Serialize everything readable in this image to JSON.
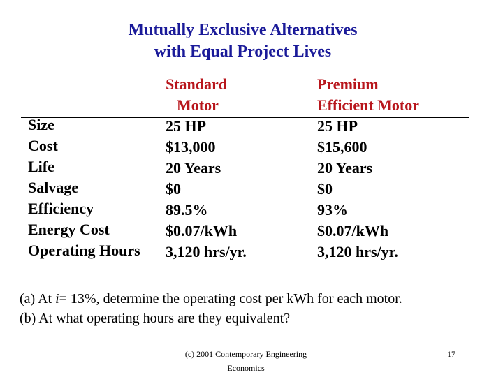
{
  "title": {
    "line1": "Mutually Exclusive Alternatives",
    "line2": "with Equal Project Lives"
  },
  "colors": {
    "title": "#1a1a99",
    "column_header": "#b8161c",
    "text": "#000000"
  },
  "table": {
    "row_labels": [
      "Size",
      "Cost",
      "Life",
      "Salvage",
      "Efficiency",
      "Energy Cost",
      "Operating Hours"
    ],
    "standard": {
      "header_line1": "Standard",
      "header_line2": "Motor",
      "values": [
        "25 HP",
        "$13,000",
        "20 Years",
        "$0",
        "89.5%",
        "$0.07/kWh",
        "3,120 hrs/yr."
      ]
    },
    "premium": {
      "header_line1": "Premium",
      "header_line2": "Efficient Motor",
      "values": [
        "25 HP",
        "$15,600",
        "20 Years",
        "$0",
        "93%",
        "$0.07/kWh",
        "3,120 hrs/yr."
      ]
    }
  },
  "questions": {
    "a_prefix": "(a) At ",
    "a_var": "i",
    "a_suffix": "= 13%, determine the operating cost per kWh for each motor.",
    "b": "(b) At what operating hours are they equivalent?"
  },
  "footer": {
    "line1": "(c) 2001 Contemporary Engineering",
    "line2": "Economics",
    "page_number": "17"
  }
}
